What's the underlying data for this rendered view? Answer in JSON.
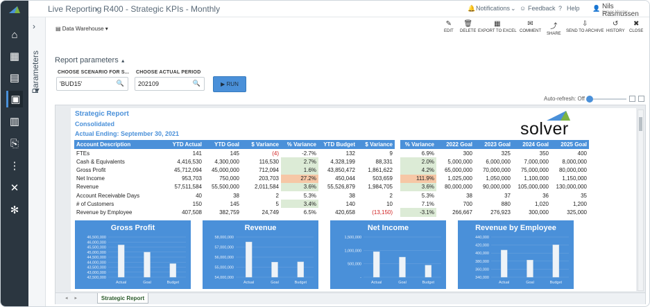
{
  "app": {
    "breadcrumb": [
      "Live Reporting",
      "R400 - Strategic KPIs - Monthly"
    ],
    "notifications_label": "Notifications",
    "feedback_label": "Feedback",
    "help_label": "Help",
    "user_name": "Nils Rasmussen",
    "user_sub": "Solver Master"
  },
  "sidebar": {
    "items": [
      {
        "icon": "home-icon",
        "glyph": "⌂"
      },
      {
        "icon": "dashboard-icon",
        "glyph": "▦"
      },
      {
        "icon": "clipboard-icon",
        "glyph": "▤"
      },
      {
        "icon": "reports-icon",
        "glyph": "▣"
      },
      {
        "icon": "calculator-icon",
        "glyph": "▥"
      },
      {
        "icon": "user-data-icon",
        "glyph": "⎘"
      },
      {
        "icon": "hierarchy-icon",
        "glyph": "⋮"
      },
      {
        "icon": "tools-icon",
        "glyph": "✕"
      },
      {
        "icon": "settings-icon",
        "glyph": "✻"
      }
    ]
  },
  "params_panel": {
    "label": "Parameters"
  },
  "toolbar": {
    "datasource": "Data Warehouse",
    "actions": [
      {
        "label": "EDIT",
        "glyph": "✎",
        "name": "edit"
      },
      {
        "label": "DELETE",
        "glyph": "🗑",
        "name": "delete"
      },
      {
        "label": "EXPORT TO EXCEL",
        "glyph": "▦",
        "name": "export-to-excel"
      },
      {
        "label": "COMMENT",
        "glyph": "✉",
        "name": "comment"
      },
      {
        "label": "SHARE",
        "glyph": "⤴",
        "name": "share"
      },
      {
        "label": "SEND TO ARCHIVE",
        "glyph": "⇩",
        "name": "send-to-archive"
      },
      {
        "label": "HISTORY",
        "glyph": "↺",
        "name": "history"
      },
      {
        "label": "CLOSE",
        "glyph": "✖",
        "name": "close"
      }
    ]
  },
  "report_params": {
    "title": "Report parameters",
    "scenario_label": "CHOOSE SCENARIO FOR S...",
    "scenario_value": "'BUD15'",
    "period_label": "CHOOSE ACTUAL PERIOD",
    "period_value": "202109",
    "run_label": "RUN"
  },
  "autorefresh": {
    "label": "Auto-refresh: Off"
  },
  "report": {
    "title": "Strategic Report",
    "subtitle": "Consolidated",
    "ending": "Actual Ending: September 30, 2021",
    "logo_text": "solver",
    "sheet_tab": "Strategic Report",
    "headers": [
      "Account Description",
      "YTD Actual",
      "YTD Goal",
      "$ Variance",
      "% Variance",
      "YTD Budget",
      "$ Variance",
      "% Variance",
      "2022 Goal",
      "2023 Goal",
      "2024 Goal",
      "2025 Goal"
    ],
    "rows": [
      {
        "cells": [
          "FTEs",
          "141",
          "145",
          "(4)",
          "-2.7%",
          "132",
          "9",
          "6.9%",
          "300",
          "325",
          "350",
          "400"
        ],
        "flags": [
          "",
          "",
          "",
          "neg",
          "",
          "",
          "",
          "",
          "",
          "",
          "",
          ""
        ]
      },
      {
        "cells": [
          "Cash & Equivalents",
          "4,416,530",
          "4,300,000",
          "116,530",
          "2.7%",
          "4,328,199",
          "88,331",
          "2.0%",
          "5,000,000",
          "6,000,000",
          "7,000,000",
          "8,000,000"
        ],
        "flags": [
          "",
          "",
          "",
          "",
          "green",
          "",
          "",
          "green",
          "",
          "",
          "",
          ""
        ]
      },
      {
        "cells": [
          "Gross Profit",
          "45,712,094",
          "45,000,000",
          "712,094",
          "1.6%",
          "43,850,472",
          "1,861,622",
          "4.2%",
          "65,000,000",
          "70,000,000",
          "75,000,000",
          "80,000,000"
        ],
        "flags": [
          "",
          "",
          "",
          "",
          "green",
          "",
          "",
          "green",
          "",
          "",
          "",
          ""
        ]
      },
      {
        "cells": [
          "Net Income",
          "953,703",
          "750,000",
          "203,703",
          "27.2%",
          "450,044",
          "503,659",
          "111.9%",
          "1,025,000",
          "1,050,000",
          "1,100,000",
          "1,150,000"
        ],
        "flags": [
          "",
          "",
          "",
          "",
          "orange",
          "",
          "",
          "orange",
          "",
          "",
          "",
          ""
        ]
      },
      {
        "cells": [
          "Revenue",
          "57,511,584",
          "55,500,000",
          "2,011,584",
          "3.6%",
          "55,526,879",
          "1,984,705",
          "3.6%",
          "80,000,000",
          "90,000,000",
          "105,000,000",
          "130,000,000"
        ],
        "flags": [
          "",
          "",
          "",
          "",
          "green",
          "",
          "",
          "green",
          "",
          "",
          "",
          ""
        ]
      },
      {
        "cells": [
          "Account Receivable Days",
          "40",
          "38",
          "2",
          "5.3%",
          "38",
          "2",
          "5.3%",
          "38",
          "37",
          "36",
          "35"
        ],
        "flags": [
          "",
          "",
          "",
          "",
          "",
          "",
          "",
          "",
          "",
          "",
          "",
          ""
        ]
      },
      {
        "cells": [
          "# of Customers",
          "150",
          "145",
          "5",
          "3.4%",
          "140",
          "10",
          "7.1%",
          "700",
          "880",
          "1,020",
          "1,200"
        ],
        "flags": [
          "",
          "",
          "",
          "",
          "green",
          "",
          "",
          "",
          "",
          "",
          "",
          ""
        ]
      },
      {
        "cells": [
          "Revenue by Employee",
          "407,508",
          "382,759",
          "24,749",
          "6.5%",
          "420,658",
          "(13,150)",
          "-3.1%",
          "266,667",
          "276,923",
          "300,000",
          "325,000"
        ],
        "flags": [
          "",
          "",
          "",
          "",
          "",
          "",
          "neg",
          "green",
          "",
          "",
          "",
          ""
        ]
      }
    ]
  },
  "chart_data": [
    {
      "type": "bar",
      "title": "Gross Profit",
      "categories": [
        "Actual",
        "Goal",
        "Budget"
      ],
      "values": [
        45712094,
        45000000,
        43850472
      ],
      "ylim": [
        42500000,
        46500000
      ],
      "yticks": [
        "46,500,000",
        "46,000,000",
        "45,500,000",
        "45,000,000",
        "44,500,000",
        "44,000,000",
        "43,500,000",
        "43,000,000",
        "42,500,000"
      ]
    },
    {
      "type": "bar",
      "title": "Revenue",
      "categories": [
        "Actual",
        "Goal",
        "Budget"
      ],
      "values": [
        57511584,
        55500000,
        55526879
      ],
      "ylim": [
        54000000,
        58000000
      ],
      "yticks": [
        "58,000,000",
        "57,000,000",
        "56,000,000",
        "55,000,000",
        "54,000,000"
      ]
    },
    {
      "type": "bar",
      "title": "Net Income",
      "categories": [
        "Actual",
        "Goal",
        "Budget"
      ],
      "values": [
        953703,
        750000,
        450044
      ],
      "ylim": [
        0,
        1500000
      ],
      "yticks": [
        "1,500,000",
        "1,000,000",
        "500,000",
        "-"
      ]
    },
    {
      "type": "bar",
      "title": "Revenue by Employee",
      "categories": [
        "Actual",
        "Goal",
        "Budget"
      ],
      "values": [
        407508,
        382759,
        420658
      ],
      "ylim": [
        340000,
        440000
      ],
      "yticks": [
        "440,000",
        "420,000",
        "400,000",
        "380,000",
        "360,000",
        "340,000"
      ]
    }
  ]
}
